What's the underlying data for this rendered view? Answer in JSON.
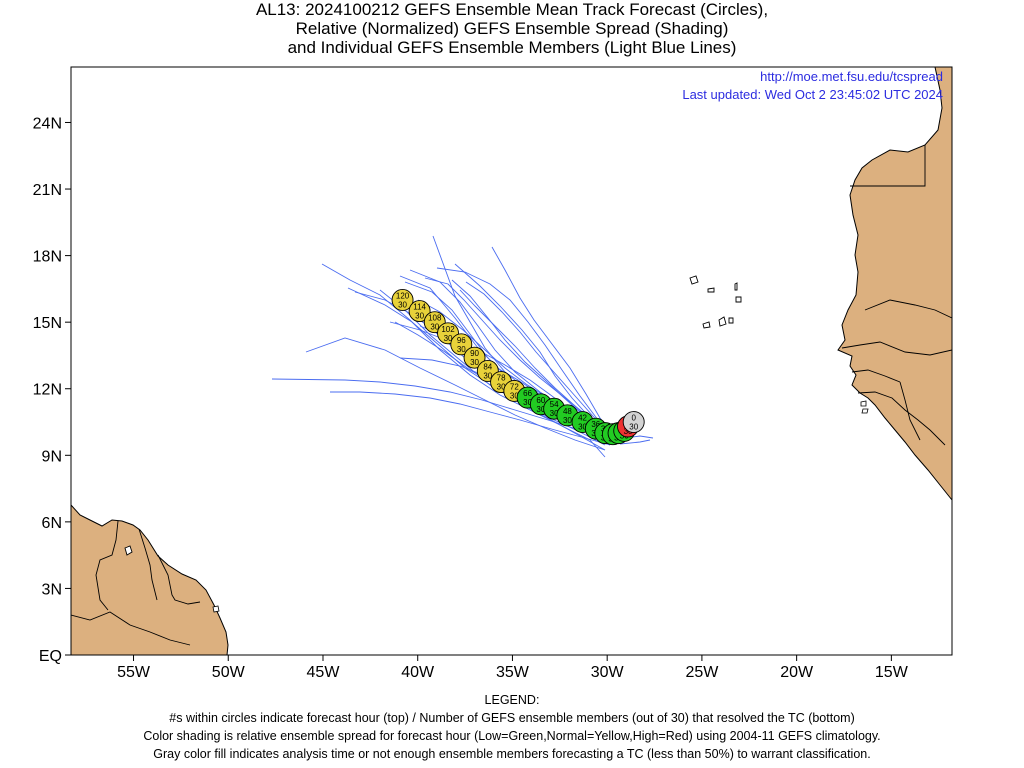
{
  "title_lines": [
    "AL13: 2024100212 GEFS Ensemble Mean Track Forecast (Circles),",
    "Relative (Normalized) GEFS Ensemble Spread (Shading)",
    "and Individual GEFS Ensemble Members (Light Blue Lines)"
  ],
  "info": {
    "url": "http://moe.met.fsu.edu/tcspread",
    "updated": "Last updated: Wed Oct 2 23:45:02 UTC 2024"
  },
  "legend": {
    "heading": "LEGEND:",
    "lines": [
      "#s within circles indicate forecast hour (top) / Number of GEFS ensemble members (out of 30) that resolved the TC (bottom)",
      "Color shading is relative ensemble spread for forecast hour (Low=Green,Normal=Yellow,High=Red) using 2004-11 GEFS climatology.",
      "Gray color fill indicates analysis time or not enough ensemble members forecasting a TC (less than 50%) to warrant classification."
    ]
  },
  "map": {
    "lon_range": [
      -58.3,
      -11.8
    ],
    "lat_range": [
      0,
      26.5
    ],
    "x_ticks": [
      {
        "lon": -55,
        "label": "55W"
      },
      {
        "lon": -50,
        "label": "50W"
      },
      {
        "lon": -45,
        "label": "45W"
      },
      {
        "lon": -40,
        "label": "40W"
      },
      {
        "lon": -35,
        "label": "35W"
      },
      {
        "lon": -30,
        "label": "30W"
      },
      {
        "lon": -25,
        "label": "25W"
      },
      {
        "lon": -20,
        "label": "20W"
      },
      {
        "lon": -15,
        "label": "15W"
      }
    ],
    "y_ticks": [
      {
        "lat": 0,
        "label": "EQ"
      },
      {
        "lat": 3,
        "label": "3N"
      },
      {
        "lat": 6,
        "label": "6N"
      },
      {
        "lat": 9,
        "label": "9N"
      },
      {
        "lat": 12,
        "label": "12N"
      },
      {
        "lat": 15,
        "label": "15N"
      },
      {
        "lat": 18,
        "label": "18N"
      },
      {
        "lat": 21,
        "label": "21N"
      },
      {
        "lat": 24,
        "label": "24N"
      }
    ],
    "colors": {
      "land": "#dcb07f",
      "member_line": "#4a6cf0",
      "low_spread": "#22cc22",
      "normal_spread": "#e8d23a",
      "high_spread": "#ee3333",
      "analysis": "#d3d3d3",
      "info_text": "#2c2ce0"
    }
  },
  "chart_data": {
    "type": "map-track",
    "mean_track": [
      {
        "hour": 0,
        "members": 30,
        "lon": -28.6,
        "lat": 10.5,
        "spread": "gray"
      },
      {
        "hour": 6,
        "members": 30,
        "lon": -28.9,
        "lat": 10.3,
        "spread": "high"
      },
      {
        "hour": 12,
        "members": 30,
        "lon": -29.1,
        "lat": 10.1,
        "spread": "low"
      },
      {
        "hour": 18,
        "members": 30,
        "lon": -29.4,
        "lat": 10.0,
        "spread": "low"
      },
      {
        "hour": 24,
        "members": 30,
        "lon": -29.7,
        "lat": 9.95,
        "spread": "low"
      },
      {
        "hour": 30,
        "members": 30,
        "lon": -30.1,
        "lat": 10.0,
        "spread": "low"
      },
      {
        "hour": 36,
        "members": 30,
        "lon": -30.6,
        "lat": 10.2,
        "spread": "low"
      },
      {
        "hour": 42,
        "members": 30,
        "lon": -31.3,
        "lat": 10.5,
        "spread": "low"
      },
      {
        "hour": 48,
        "members": 30,
        "lon": -32.1,
        "lat": 10.8,
        "spread": "low"
      },
      {
        "hour": 54,
        "members": 30,
        "lon": -32.8,
        "lat": 11.1,
        "spread": "low"
      },
      {
        "hour": 60,
        "members": 30,
        "lon": -33.5,
        "lat": 11.3,
        "spread": "low"
      },
      {
        "hour": 66,
        "members": 30,
        "lon": -34.2,
        "lat": 11.6,
        "spread": "low"
      },
      {
        "hour": 72,
        "members": 30,
        "lon": -34.9,
        "lat": 11.9,
        "spread": "normal"
      },
      {
        "hour": 78,
        "members": 30,
        "lon": -35.6,
        "lat": 12.3,
        "spread": "normal"
      },
      {
        "hour": 84,
        "members": 30,
        "lon": -36.3,
        "lat": 12.8,
        "spread": "normal"
      },
      {
        "hour": 90,
        "members": 30,
        "lon": -37.0,
        "lat": 13.4,
        "spread": "normal"
      },
      {
        "hour": 96,
        "members": 30,
        "lon": -37.7,
        "lat": 14.0,
        "spread": "normal"
      },
      {
        "hour": 102,
        "members": 30,
        "lon": -38.4,
        "lat": 14.5,
        "spread": "normal"
      },
      {
        "hour": 108,
        "members": 30,
        "lon": -39.1,
        "lat": 15.0,
        "spread": "normal"
      },
      {
        "hour": 114,
        "members": 30,
        "lon": -39.9,
        "lat": 15.5,
        "spread": "normal"
      },
      {
        "hour": 120,
        "members": 30,
        "lon": -40.8,
        "lat": 16.0,
        "spread": "normal"
      }
    ]
  }
}
